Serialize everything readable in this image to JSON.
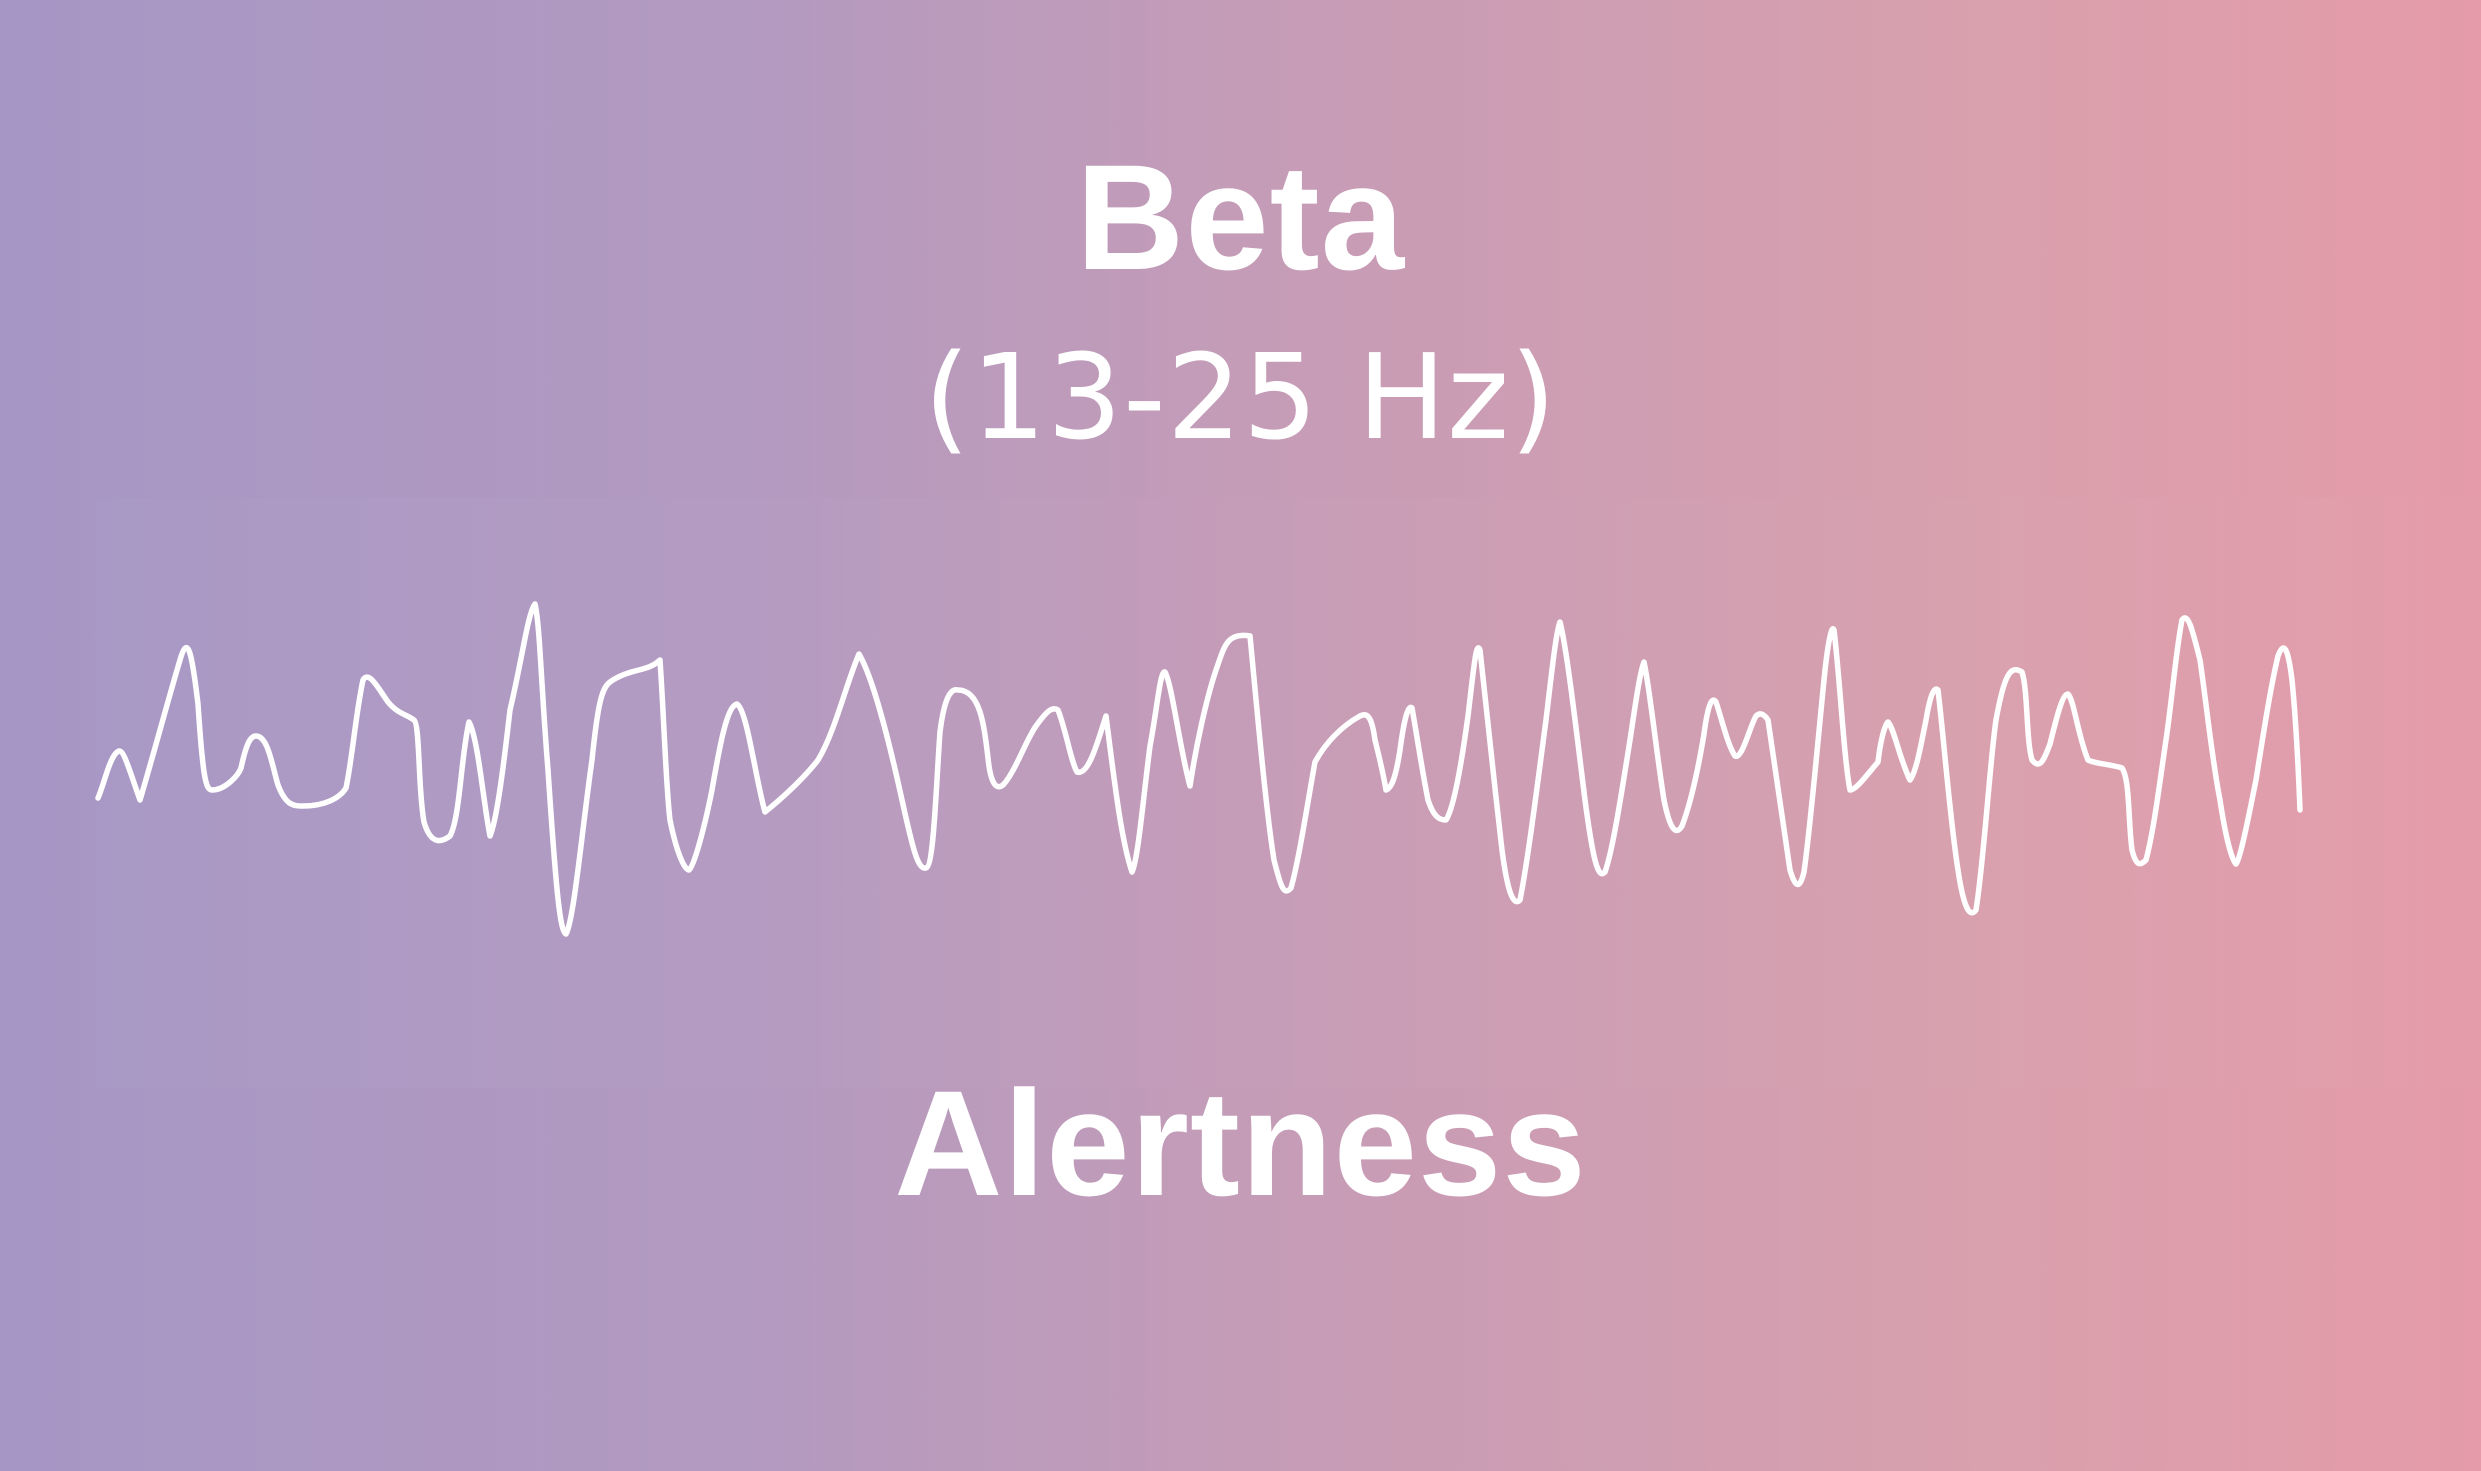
{
  "header": {
    "title": "Beta",
    "frequency_range": "(13-25 Hz)"
  },
  "waveform": {
    "stroke_color": "#ffffff"
  },
  "footer": {
    "label": "Alertness"
  },
  "colors": {
    "gradient_left": "#a696c5",
    "gradient_right": "#e59ba9",
    "text": "#ffffff"
  }
}
